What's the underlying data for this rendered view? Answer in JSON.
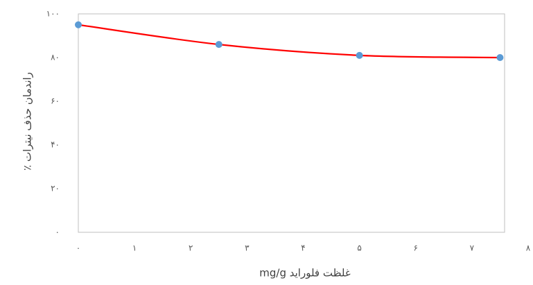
{
  "chart_data": {
    "type": "line",
    "xlabel": "غلظت فلوراید mg/g",
    "ylabel": "راندمان حذف نیترات ٪",
    "x": [
      0,
      2.5,
      5,
      7.5
    ],
    "series": [
      {
        "name": null,
        "color": "#ff0000",
        "marker_color": "#5b9bd5",
        "values": [
          95,
          86,
          81,
          80
        ]
      }
    ],
    "xlim": [
      0,
      8
    ],
    "xticks": [
      {
        "value": 0,
        "label": "۰"
      },
      {
        "value": 1,
        "label": "۱"
      },
      {
        "value": 2,
        "label": "۲"
      },
      {
        "value": 3,
        "label": "۳"
      },
      {
        "value": 4,
        "label": "۴"
      },
      {
        "value": 5,
        "label": "۵"
      },
      {
        "value": 6,
        "label": "۶"
      },
      {
        "value": 7,
        "label": "۷"
      },
      {
        "value": 8,
        "label": "۸"
      }
    ],
    "ylim": [
      0,
      100
    ],
    "yticks": [
      {
        "value": 0,
        "label": "۰"
      },
      {
        "value": 20,
        "label": "۲۰"
      },
      {
        "value": 40,
        "label": "۴۰"
      },
      {
        "value": 60,
        "label": "۶۰"
      },
      {
        "value": 80,
        "label": "۸۰"
      },
      {
        "value": 100,
        "label": "۱۰۰"
      }
    ],
    "smooth": true
  }
}
